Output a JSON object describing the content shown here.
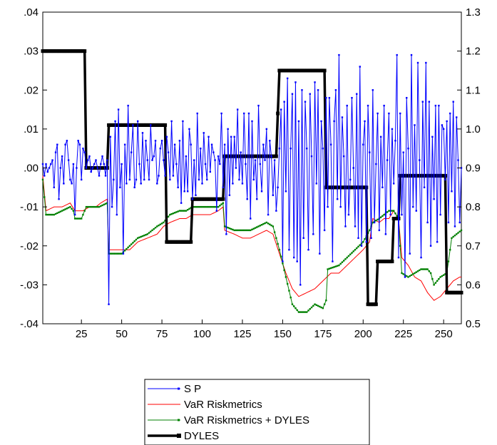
{
  "chart_data": {
    "type": "line",
    "x_ticks": [
      "25",
      "50",
      "75",
      "100",
      "125",
      "150",
      "175",
      "200",
      "225",
      "250"
    ],
    "xlim": [
      1,
      261
    ],
    "left_axis": {
      "ylim": [
        -0.04,
        0.04
      ],
      "tick_values": [
        -0.04,
        -0.03,
        -0.02,
        -0.01,
        0.0,
        0.01,
        0.02,
        0.03,
        0.04
      ],
      "tick_labels": [
        "-.04",
        "-.03",
        "-.02",
        "-.01",
        ".00",
        ".01",
        ".02",
        ".03",
        ".04"
      ]
    },
    "right_axis": {
      "ylim": [
        0.5,
        1.3
      ],
      "tick_values": [
        0.5,
        0.6,
        0.7,
        0.8,
        0.9,
        1.0,
        1.1,
        1.2,
        1.3
      ],
      "tick_labels": [
        "0.5",
        "0.6",
        "0.7",
        "0.8",
        "0.9",
        "1.0",
        "1.1",
        "1.2",
        "1.3"
      ]
    },
    "grid": false,
    "legend_position": "bottom-center",
    "series": [
      {
        "name": "S P",
        "color": "#0000ff",
        "axis": "left",
        "marker": "dot",
        "values": [
          0.001,
          -0.002,
          0.001,
          -0.001,
          0.0,
          0.001,
          0.002,
          -0.005,
          0.004,
          0.006,
          -0.008,
          0.0,
          0.003,
          -0.004,
          0.006,
          0.007,
          0.002,
          -0.003,
          -0.004,
          0.001,
          -0.012,
          0.0,
          0.007,
          0.006,
          -0.003,
          0.005,
          0.004,
          0.0,
          0.002,
          0.003,
          -0.001,
          0.0,
          0.001,
          0.002,
          0.0,
          -0.002,
          0.001,
          0.003,
          0.001,
          -0.002,
          0.002,
          -0.035,
          0.008,
          -0.01,
          -0.003,
          0.012,
          -0.012,
          0.015,
          -0.005,
          0.001,
          -0.022,
          0.006,
          -0.004,
          0.016,
          -0.003,
          0.004,
          0.011,
          -0.005,
          -0.003,
          0.012,
          0.001,
          -0.004,
          0.009,
          -0.003,
          0.007,
          0.002,
          -0.003,
          0.011,
          0.002,
          0.003,
          0.007,
          -0.004,
          -0.002,
          0.005,
          0.007,
          0.002,
          -0.002,
          0.008,
          0.004,
          -0.003,
          0.012,
          -0.002,
          0.006,
          0.001,
          -0.005,
          0.007,
          -0.009,
          0.012,
          -0.006,
          0.003,
          -0.006,
          0.01,
          0.006,
          -0.008,
          0.002,
          -0.007,
          0.014,
          -0.003,
          0.005,
          -0.004,
          0.009,
          0.001,
          -0.003,
          0.008,
          -0.001,
          0.006,
          0.004,
          0.002,
          -0.011,
          0.003,
          0.001,
          0.014,
          -0.005,
          0.006,
          -0.017,
          0.01,
          -0.007,
          0.008,
          -0.004,
          0.008,
          0.0,
          0.015,
          -0.003,
          0.004,
          -0.004,
          0.014,
          0.001,
          -0.008,
          0.014,
          -0.013,
          0.012,
          -0.003,
          0.002,
          -0.008,
          0.016,
          0.001,
          -0.006,
          0.006,
          0.002,
          0.01,
          -0.012,
          0.007,
          0.003,
          -0.007,
          0.002,
          -0.011,
          -0.005,
          0.005,
          0.015,
          -0.024,
          0.017,
          -0.006,
          0.023,
          -0.021,
          0.005,
          0.019,
          -0.023,
          0.022,
          -0.024,
          0.012,
          -0.03,
          0.02,
          -0.018,
          0.017,
          0.005,
          -0.021,
          0.019,
          0.003,
          -0.017,
          0.022,
          -0.004,
          0.02,
          -0.022,
          0.012,
          0.005,
          -0.016,
          0.018,
          -0.01,
          0.018,
          0.006,
          -0.024,
          0.012,
          0.02,
          -0.008,
          0.029,
          -0.01,
          0.013,
          0.003,
          -0.015,
          0.016,
          -0.012,
          -0.003,
          0.018,
          0.0,
          -0.015,
          0.019,
          -0.018,
          0.026,
          -0.02,
          0.006,
          0.012,
          -0.019,
          0.016,
          0.004,
          -0.018,
          0.02,
          -0.014,
          0.001,
          0.014,
          -0.016,
          0.008,
          -0.005,
          0.016,
          -0.017,
          0.002,
          0.014,
          -0.012,
          0.01,
          -0.004,
          0.007,
          0.029,
          -0.023,
          0.014,
          -0.012,
          0.004,
          -0.028,
          0.018,
          0.005,
          -0.022,
          0.029,
          -0.01,
          0.011,
          -0.011,
          0.027,
          0.002,
          -0.023,
          0.017,
          -0.005,
          0.027,
          -0.014,
          0.017,
          -0.02,
          0.008,
          -0.008,
          0.016,
          -0.019,
          0.016,
          -0.012,
          0.011,
          0.01,
          -0.003,
          0.012,
          -0.014,
          0.014,
          -0.006,
          0.017,
          -0.015,
          0.013,
          0.002,
          -0.014,
          0.0
        ]
      },
      {
        "name": "VaR Riskmetrics",
        "color": "#ff0000",
        "axis": "left",
        "marker": "none",
        "anchors": [
          [
            1,
            -0.002
          ],
          [
            3,
            -0.011
          ],
          [
            8,
            -0.01
          ],
          [
            13,
            -0.01
          ],
          [
            18,
            -0.009
          ],
          [
            21,
            -0.011
          ],
          [
            26,
            -0.011
          ],
          [
            30,
            -0.01
          ],
          [
            34,
            -0.01
          ],
          [
            37,
            -0.009
          ],
          [
            41,
            -0.008
          ],
          [
            42,
            -0.021
          ],
          [
            50,
            -0.021
          ],
          [
            55,
            -0.021
          ],
          [
            60,
            -0.019
          ],
          [
            66,
            -0.018
          ],
          [
            72,
            -0.017
          ],
          [
            76,
            -0.015
          ],
          [
            80,
            -0.014
          ],
          [
            86,
            -0.013
          ],
          [
            90,
            -0.013
          ],
          [
            94,
            -0.012
          ],
          [
            100,
            -0.012
          ],
          [
            105,
            -0.012
          ],
          [
            110,
            -0.011
          ],
          [
            113,
            -0.01
          ],
          [
            114,
            -0.016
          ],
          [
            120,
            -0.017
          ],
          [
            125,
            -0.018
          ],
          [
            130,
            -0.018
          ],
          [
            135,
            -0.017
          ],
          [
            140,
            -0.016
          ],
          [
            144,
            -0.017
          ],
          [
            148,
            -0.022
          ],
          [
            152,
            -0.027
          ],
          [
            156,
            -0.031
          ],
          [
            160,
            -0.033
          ],
          [
            165,
            -0.032
          ],
          [
            170,
            -0.031
          ],
          [
            175,
            -0.029
          ],
          [
            180,
            -0.027
          ],
          [
            185,
            -0.027
          ],
          [
            190,
            -0.025
          ],
          [
            195,
            -0.023
          ],
          [
            200,
            -0.021
          ],
          [
            204,
            -0.019
          ],
          [
            206,
            -0.013
          ],
          [
            210,
            -0.014
          ],
          [
            213,
            -0.013
          ],
          [
            216,
            -0.013
          ],
          [
            219,
            -0.011
          ],
          [
            222,
            -0.013
          ],
          [
            224,
            -0.023
          ],
          [
            228,
            -0.025
          ],
          [
            232,
            -0.028
          ],
          [
            236,
            -0.029
          ],
          [
            240,
            -0.032
          ],
          [
            244,
            -0.034
          ],
          [
            248,
            -0.033
          ],
          [
            252,
            -0.031
          ],
          [
            256,
            -0.029
          ],
          [
            260,
            -0.028
          ]
        ]
      },
      {
        "name": "VaR Riskmetrics + DYLES",
        "color": "#008000",
        "axis": "left",
        "marker": "dot",
        "anchors": [
          [
            1,
            -0.003
          ],
          [
            3,
            -0.012
          ],
          [
            8,
            -0.012
          ],
          [
            13,
            -0.011
          ],
          [
            18,
            -0.01
          ],
          [
            20,
            -0.011
          ],
          [
            21,
            -0.013
          ],
          [
            25,
            -0.013
          ],
          [
            28,
            -0.01
          ],
          [
            33,
            -0.01
          ],
          [
            36,
            -0.01
          ],
          [
            41,
            -0.009
          ],
          [
            42,
            -0.022
          ],
          [
            50,
            -0.022
          ],
          [
            55,
            -0.02
          ],
          [
            60,
            -0.018
          ],
          [
            66,
            -0.017
          ],
          [
            72,
            -0.015
          ],
          [
            76,
            -0.014
          ],
          [
            80,
            -0.012
          ],
          [
            86,
            -0.011
          ],
          [
            90,
            -0.011
          ],
          [
            94,
            -0.01
          ],
          [
            100,
            -0.01
          ],
          [
            105,
            -0.01
          ],
          [
            110,
            -0.01
          ],
          [
            113,
            -0.009
          ],
          [
            114,
            -0.015
          ],
          [
            120,
            -0.016
          ],
          [
            125,
            -0.016
          ],
          [
            130,
            -0.016
          ],
          [
            135,
            -0.015
          ],
          [
            140,
            -0.014
          ],
          [
            144,
            -0.015
          ],
          [
            148,
            -0.021
          ],
          [
            152,
            -0.028
          ],
          [
            156,
            -0.035
          ],
          [
            160,
            -0.037
          ],
          [
            165,
            -0.037
          ],
          [
            170,
            -0.035
          ],
          [
            175,
            -0.036
          ],
          [
            177,
            -0.034
          ],
          [
            178,
            -0.026
          ],
          [
            185,
            -0.025
          ],
          [
            190,
            -0.023
          ],
          [
            195,
            -0.021
          ],
          [
            200,
            -0.019
          ],
          [
            204,
            -0.016
          ],
          [
            206,
            -0.014
          ],
          [
            210,
            -0.013
          ],
          [
            213,
            -0.012
          ],
          [
            216,
            -0.011
          ],
          [
            219,
            -0.011
          ],
          [
            222,
            -0.013
          ],
          [
            224,
            -0.027
          ],
          [
            228,
            -0.028
          ],
          [
            232,
            -0.027
          ],
          [
            236,
            -0.026
          ],
          [
            240,
            -0.026
          ],
          [
            242,
            -0.027
          ],
          [
            244,
            -0.03
          ],
          [
            248,
            -0.028
          ],
          [
            252,
            -0.027
          ],
          [
            255,
            -0.018
          ],
          [
            258,
            -0.017
          ],
          [
            261,
            -0.016
          ]
        ]
      },
      {
        "name": "DYLES",
        "color": "#000000",
        "axis": "right",
        "marker": "square",
        "anchors": [
          [
            1,
            1.2
          ],
          [
            27,
            1.2
          ],
          [
            28,
            0.9
          ],
          [
            41,
            0.9
          ],
          [
            42,
            1.01
          ],
          [
            77,
            1.01
          ],
          [
            78,
            0.71
          ],
          [
            93,
            0.71
          ],
          [
            94,
            0.82
          ],
          [
            113,
            0.82
          ],
          [
            114,
            0.93
          ],
          [
            146,
            0.93
          ],
          [
            147,
            1.04
          ],
          [
            148,
            1.15
          ],
          [
            176,
            1.15
          ],
          [
            177,
            0.85
          ],
          [
            202,
            0.85
          ],
          [
            203,
            0.55
          ],
          [
            208,
            0.55
          ],
          [
            209,
            0.66
          ],
          [
            218,
            0.66
          ],
          [
            219,
            0.77
          ],
          [
            222,
            0.77
          ],
          [
            223,
            0.88
          ],
          [
            251,
            0.88
          ],
          [
            252,
            0.58
          ],
          [
            261,
            0.58
          ]
        ]
      }
    ]
  }
}
